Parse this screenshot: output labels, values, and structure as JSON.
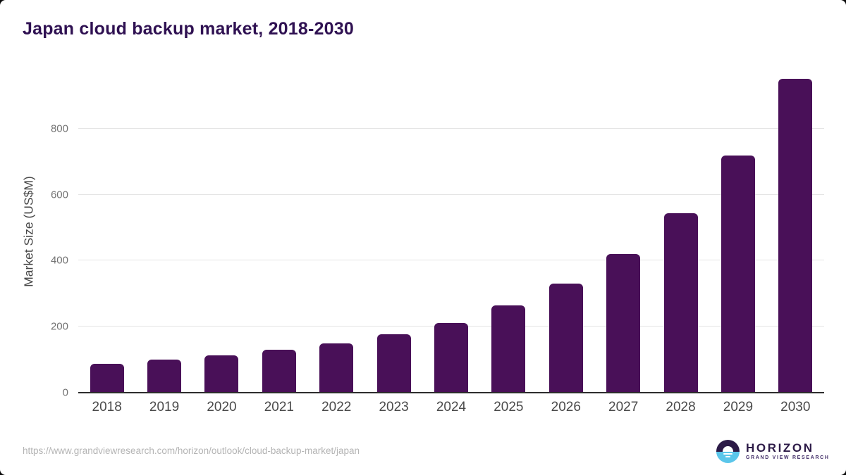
{
  "title": "Japan cloud backup market, 2018-2030",
  "source_url": "https://www.grandviewresearch.com/horizon/outlook/cloud-backup-market/japan",
  "logo": {
    "brand": "HORIZON",
    "sub": "GRAND VIEW RESEARCH",
    "icon": "horizon-sun-over-water-icon",
    "colors": {
      "purple": "#2c1a47",
      "blue": "#5bc6ea"
    }
  },
  "chart_data": {
    "type": "bar",
    "title": "Japan cloud backup market, 2018-2030",
    "categories": [
      "2018",
      "2019",
      "2020",
      "2021",
      "2022",
      "2023",
      "2024",
      "2025",
      "2026",
      "2027",
      "2028",
      "2029",
      "2030"
    ],
    "values": [
      88,
      100,
      114,
      130,
      149,
      178,
      212,
      264,
      330,
      421,
      543,
      718,
      950
    ],
    "xlabel": "",
    "ylabel": "Market Size (US$M)",
    "ylim": [
      0,
      987
    ],
    "yticks": [
      0,
      200,
      400,
      600,
      800
    ],
    "grid": true,
    "legend": false,
    "bar_color": "#491058",
    "gridline_color": "#e4e4e4",
    "axis_line_color": "#2d2d2d",
    "title_color": "#2f1152"
  }
}
